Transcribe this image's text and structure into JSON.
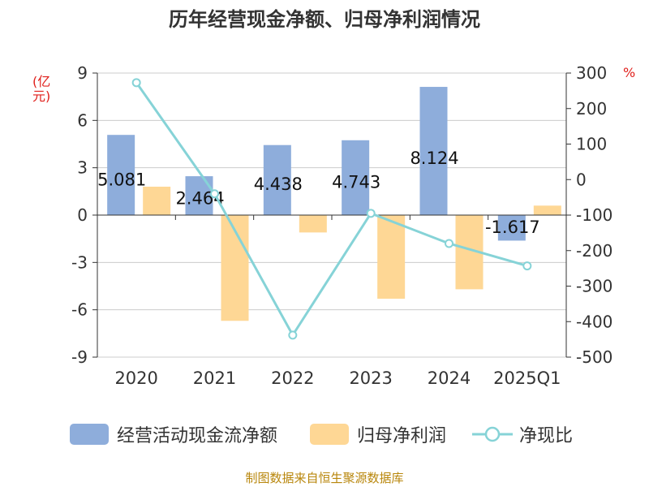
{
  "chart_data": {
    "type": "bar",
    "title": "历年经营现金净额、归母净利润情况",
    "categories": [
      "2020",
      "2021",
      "2022",
      "2023",
      "2024",
      "2025Q1"
    ],
    "series": [
      {
        "name": "经营活动现金流净额",
        "values": [
          5.081,
          2.464,
          4.438,
          4.743,
          8.124,
          -1.617
        ],
        "color": "#8eaddb",
        "axis": "left"
      },
      {
        "name": "归母净利润",
        "values": [
          1.8,
          -6.7,
          -1.1,
          -5.3,
          -4.7,
          0.6
        ],
        "color": "#fed795",
        "axis": "left"
      },
      {
        "name": "净现比",
        "type": "line",
        "values": [
          273,
          -40,
          -438,
          -95,
          -180,
          -243
        ],
        "color": "#86d3d7",
        "axis": "right"
      }
    ],
    "data_labels": [
      "5.081",
      "2.464",
      "4.438",
      "4.743",
      "8.124",
      "-1.617"
    ],
    "y_left": {
      "label": "(亿元)",
      "min": -9,
      "max": 9,
      "ticks": [
        9,
        6,
        3,
        0,
        -3,
        -6,
        -9
      ]
    },
    "y_right": {
      "label": "%",
      "min": -500,
      "max": 300,
      "ticks": [
        300,
        200,
        100,
        0,
        -100,
        -200,
        -300,
        -400,
        -500
      ]
    },
    "legend_position": "bottom",
    "grid": true
  },
  "legend": {
    "bar1": "经营活动现金流净额",
    "bar2": "归母净利润",
    "line": "净现比"
  },
  "source": "制图数据来自恒生聚源数据库",
  "colors": {
    "bar1": "#8eaddb",
    "bar2": "#fed795",
    "line": "#86d3d7",
    "axis_label": "#e0201c"
  }
}
